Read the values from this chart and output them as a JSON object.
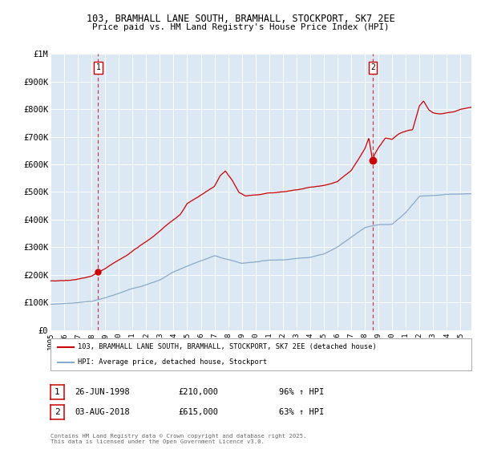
{
  "title_line1": "103, BRAMHALL LANE SOUTH, BRAMHALL, STOCKPORT, SK7 2EE",
  "title_line2": "Price paid vs. HM Land Registry's House Price Index (HPI)",
  "bg_color": "#dce9f5",
  "fig_bg_color": "#ffffff",
  "red_line_color": "#cc0000",
  "blue_line_color": "#88aacc",
  "grid_color": "#ffffff",
  "sale1_date": 1998.49,
  "sale1_price": 210000,
  "sale2_date": 2018.59,
  "sale2_price": 615000,
  "ylabel_ticks": [
    "£0",
    "£100K",
    "£200K",
    "£300K",
    "£400K",
    "£500K",
    "£600K",
    "£700K",
    "£800K",
    "£900K",
    "£1M"
  ],
  "ylabel_values": [
    0,
    100000,
    200000,
    300000,
    400000,
    500000,
    600000,
    700000,
    800000,
    900000,
    1000000
  ],
  "xmin": 1995.0,
  "xmax": 2025.8,
  "ymin": 0,
  "ymax": 1000000,
  "legend_label1": "103, BRAMHALL LANE SOUTH, BRAMHALL, STOCKPORT, SK7 2EE (detached house)",
  "legend_label2": "HPI: Average price, detached house, Stockport",
  "annotation1_label": "1",
  "annotation1_date": "26-JUN-1998",
  "annotation1_price": "£210,000",
  "annotation1_hpi": "96% ↑ HPI",
  "annotation2_label": "2",
  "annotation2_date": "03-AUG-2018",
  "annotation2_price": "£615,000",
  "annotation2_hpi": "63% ↑ HPI",
  "footnote": "Contains HM Land Registry data © Crown copyright and database right 2025.\nThis data is licensed under the Open Government Licence v3.0."
}
